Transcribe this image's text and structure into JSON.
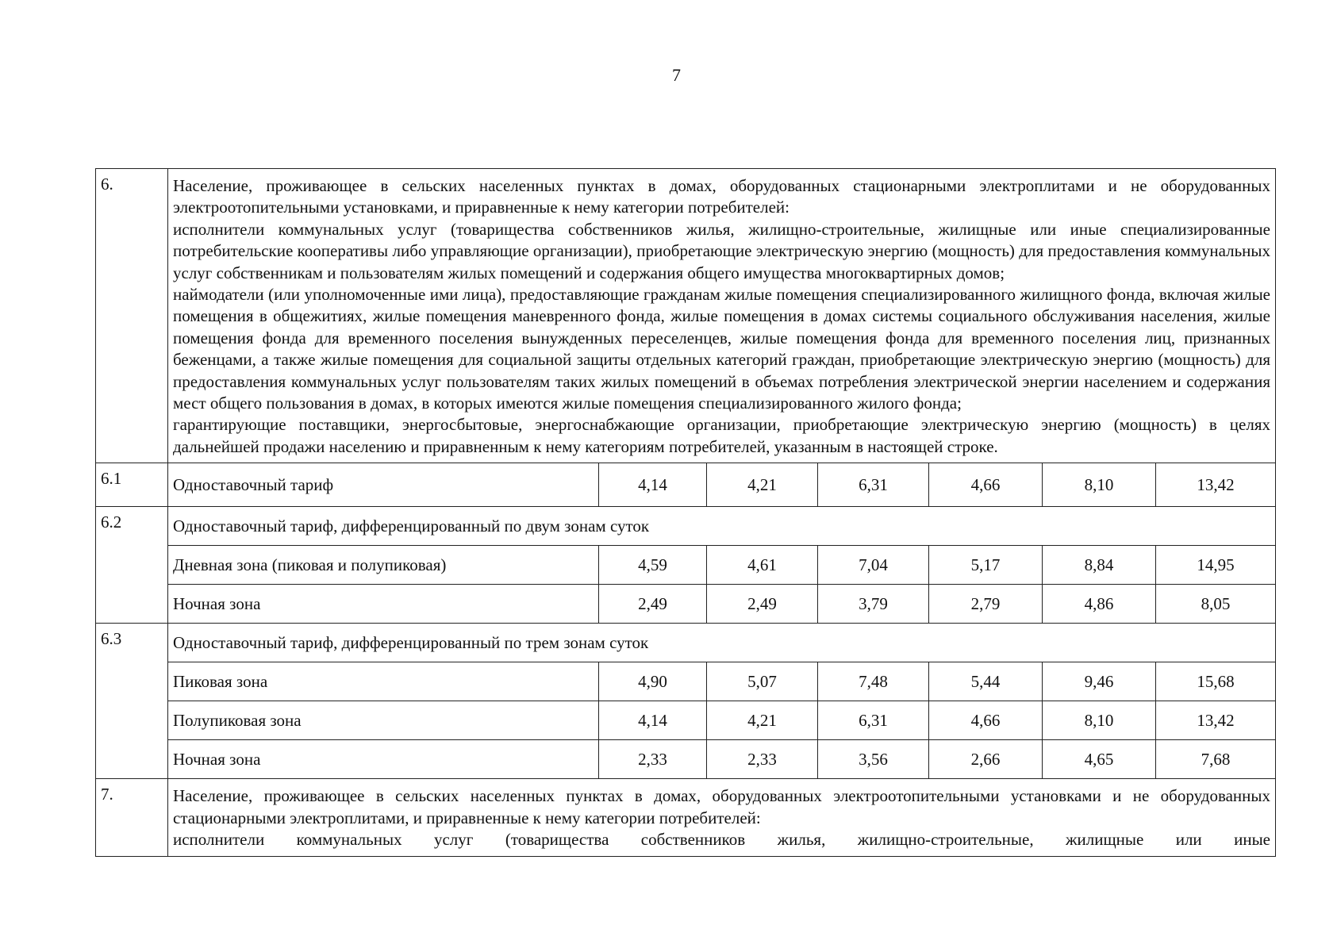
{
  "page_number": "7",
  "rows": [
    {
      "num": "6.",
      "paragraphs": [
        "Население, проживающее в сельских населенных пунктах в домах, оборудованных стационарными электроплитами и не оборудованных электроотопительными установками, и приравненные к нему категории потребителей:",
        "исполнители коммунальных услуг (товарищества собственников жилья, жилищно-строительные, жилищные или иные специализированные потребительские кооперативы либо управляющие организации), приобретающие электрическую энергию (мощность) для предоставления коммунальных услуг собственникам и пользователям жилых помещений и содержания общего имущества многоквартирных домов;",
        "наймодатели (или уполномоченные ими лица), предоставляющие гражданам жилые помещения специализированного жилищного фонда, включая жилые помещения в общежитиях, жилые помещения маневренного фонда, жилые помещения в домах системы социального обслуживания населения, жилые помещения фонда для временного поселения вынужденных переселенцев, жилые помещения фонда для временного поселения лиц, признанных беженцами, а также жилые помещения для социальной защиты отдельных категорий граждан, приобретающие электрическую энергию (мощность) для предоставления коммунальных услуг пользователям таких жилых помещений в объемах потребления электрической энергии населением и содержания мест общего пользования в домах, в которых имеются жилые помещения специализированного жилого фонда;",
        "гарантирующие поставщики, энергосбытовые, энергоснабжающие организации, приобретающие электрическую энергию (мощность) в целях дальнейшей продажи населению и приравненным к нему категориям потребителей, указанным в настоящей строке."
      ]
    },
    {
      "num": "6.1",
      "label": "Одноставочный тариф",
      "values": [
        "4,14",
        "4,21",
        "6,31",
        "4,66",
        "8,10",
        "13,42"
      ]
    },
    {
      "num": "6.2",
      "label": "Одноставочный тариф, дифференцированный по двум зонам суток",
      "sub": [
        {
          "label": "Дневная зона (пиковая и полупиковая)",
          "values": [
            "4,59",
            "4,61",
            "7,04",
            "5,17",
            "8,84",
            "14,95"
          ]
        },
        {
          "label": "Ночная зона",
          "values": [
            "2,49",
            "2,49",
            "3,79",
            "2,79",
            "4,86",
            "8,05"
          ]
        }
      ]
    },
    {
      "num": "6.3",
      "label": "Одноставочный тариф, дифференцированный по трем зонам суток",
      "sub": [
        {
          "label": "Пиковая зона",
          "values": [
            "4,90",
            "5,07",
            "7,48",
            "5,44",
            "9,46",
            "15,68"
          ]
        },
        {
          "label": "Полупиковая зона",
          "values": [
            "4,14",
            "4,21",
            "6,31",
            "4,66",
            "8,10",
            "13,42"
          ]
        },
        {
          "label": "Ночная зона",
          "values": [
            "2,33",
            "2,33",
            "3,56",
            "2,66",
            "4,65",
            "7,68"
          ]
        }
      ]
    },
    {
      "num": "7.",
      "paragraphs": [
        "Население, проживающее в сельских населенных пунктах в домах, оборудованных электроотопительными установками и не оборудованных стационарными электроплитами, и приравненные к нему категории потребителей:",
        "исполнители коммунальных услуг (товарищества собственников жилья, жилищно-строительные, жилищные или иные"
      ]
    }
  ]
}
